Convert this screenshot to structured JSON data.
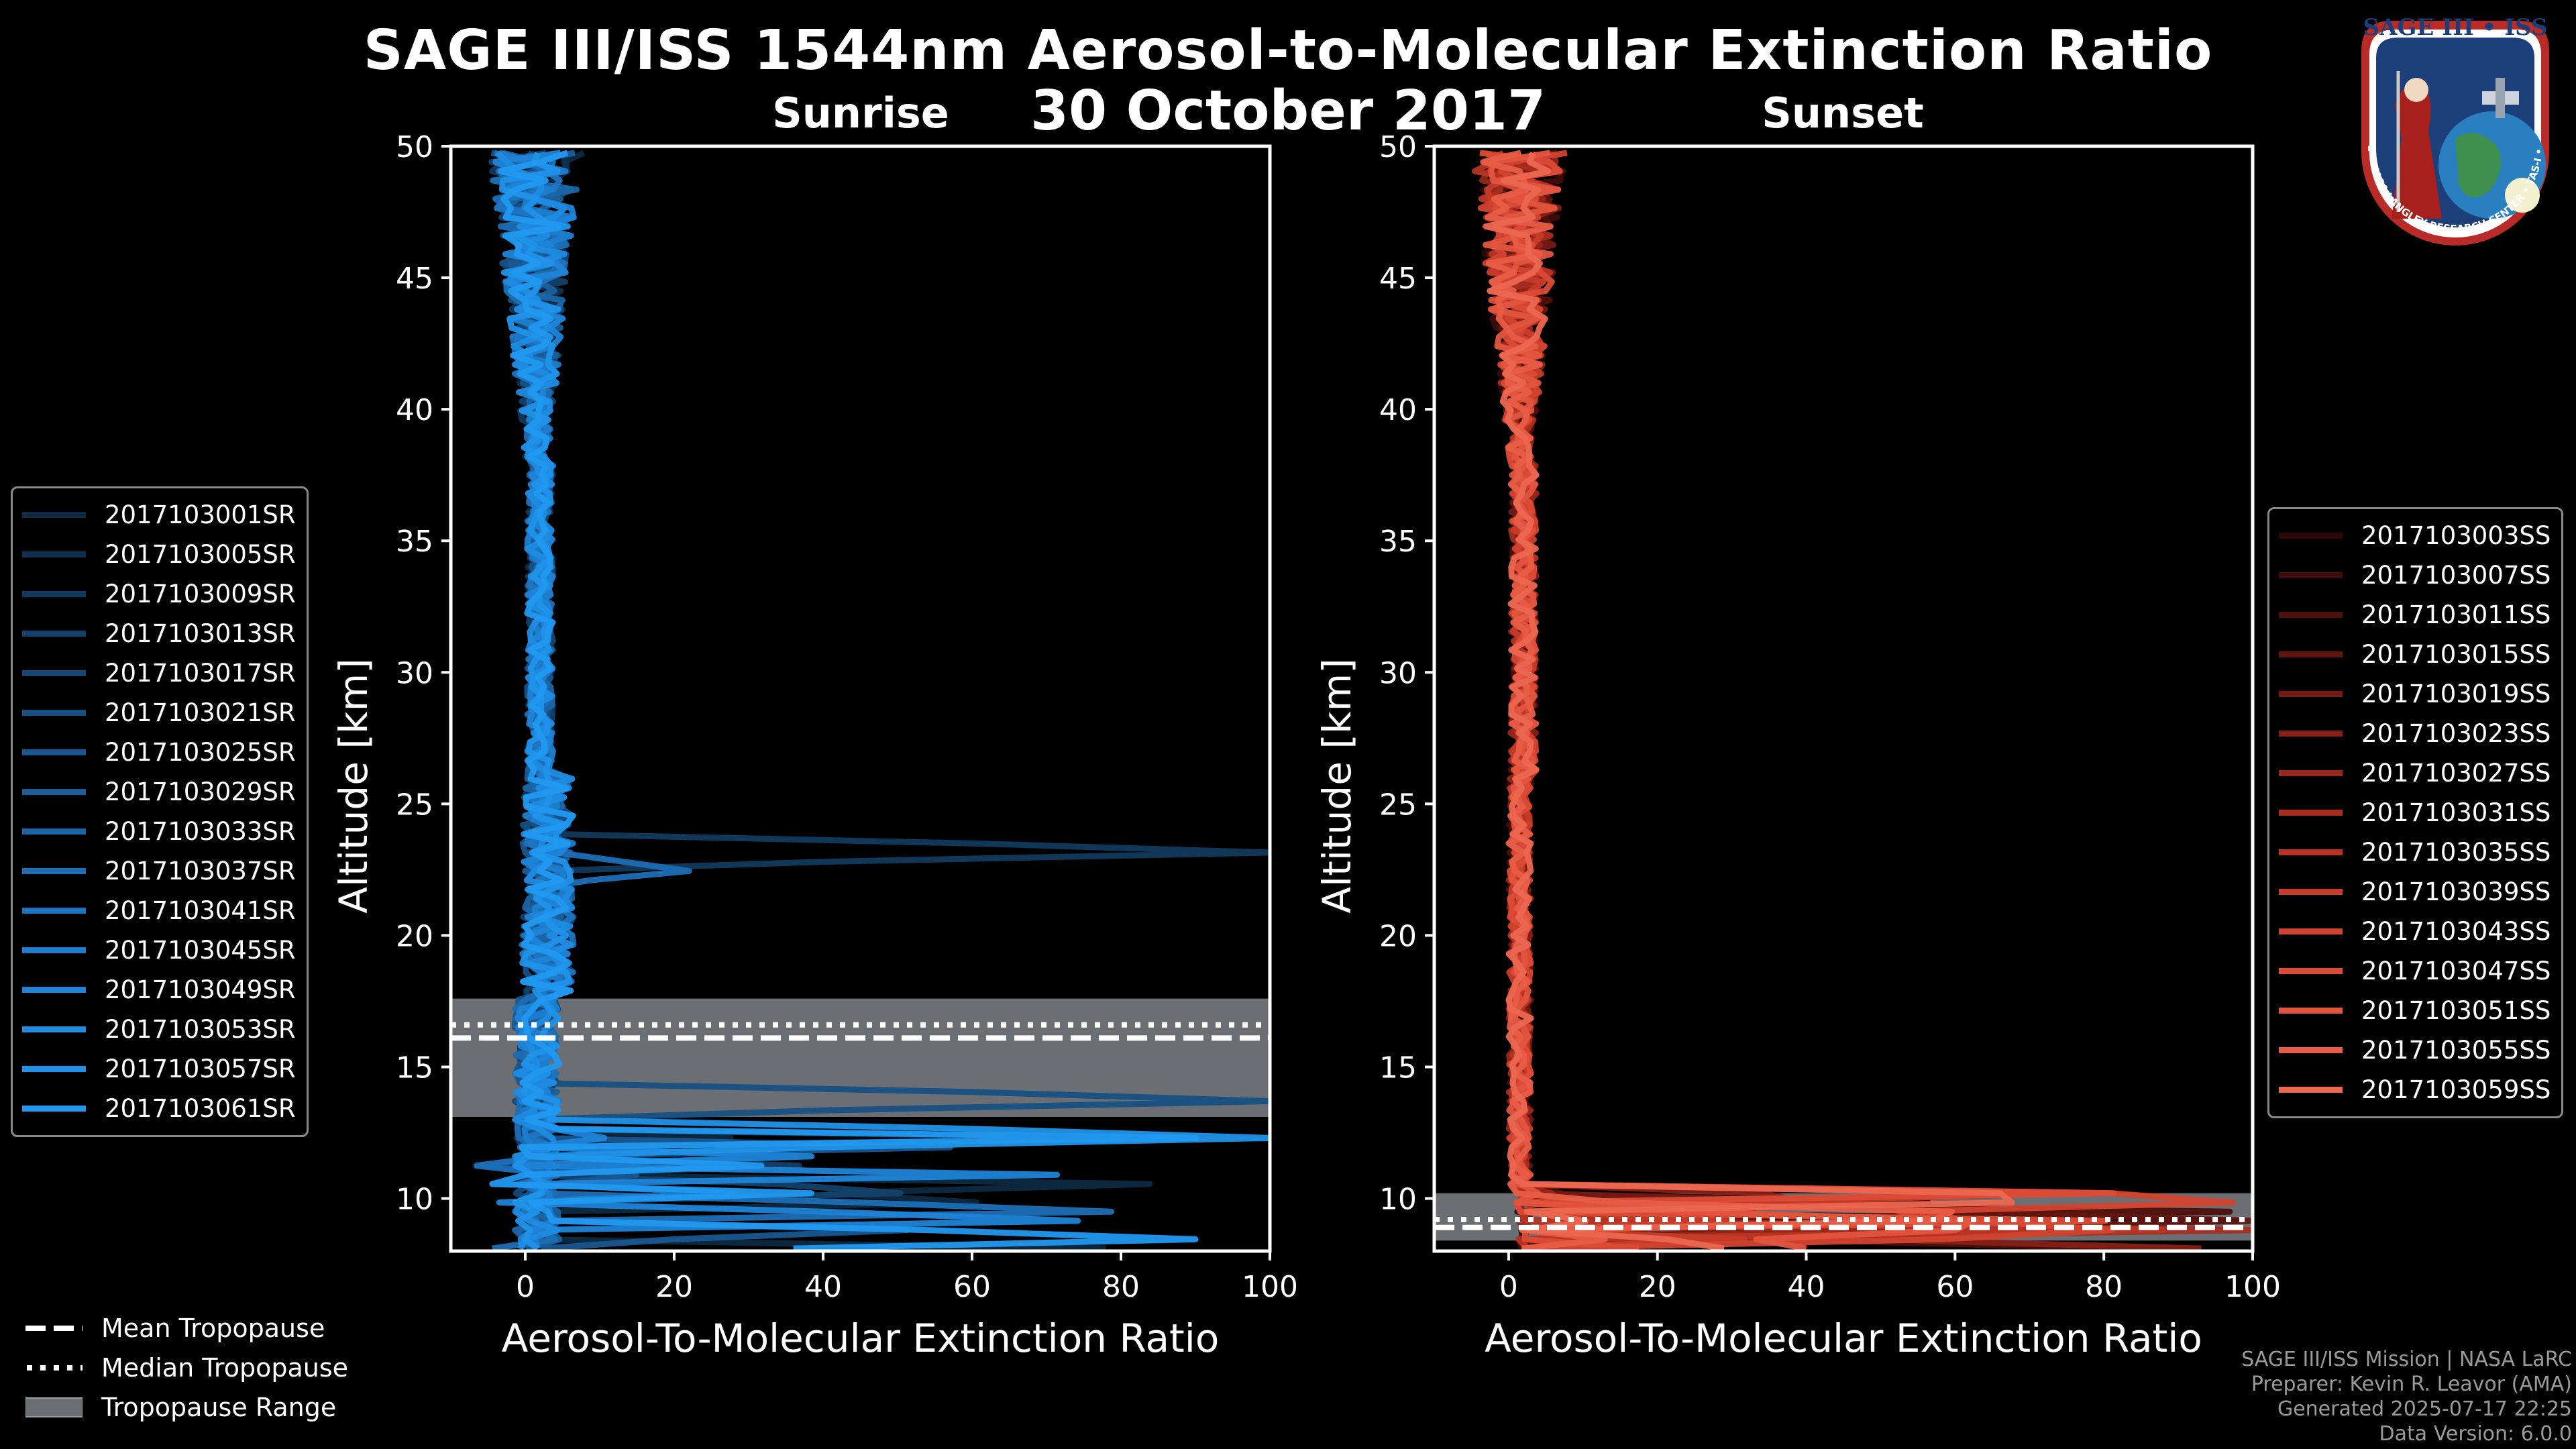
{
  "title": "SAGE III/ISS 1544nm Aerosol-to-Molecular Extinction Ratio",
  "subtitle": "30 October 2017",
  "logo": {
    "text": "SAGE III • ISS",
    "ring_text": "BALL • NASA LANGLEY RESEARCH CENTER • TAS-I • ESA"
  },
  "footer": {
    "line1": "SAGE III/ISS Mission | NASA LaRC",
    "line2": "Preparer: Kevin R. Leavor (AMA)",
    "line3": "Generated 2025-07-17 22:25",
    "line4": "Data Version: 6.0.0"
  },
  "bottom_legend": {
    "mean": "Mean Tropopause",
    "median": "Median Tropopause",
    "range": "Tropopause Range"
  },
  "colors": {
    "sunrise_accent": "#1a8fd6",
    "sunset_accent": "#e8584a",
    "tropo_range": "#6b6e72"
  },
  "chart_data": [
    {
      "type": "line",
      "title": "Sunrise",
      "xlabel": "Aerosol-To-Molecular Extinction Ratio",
      "ylabel": "Altitude [km]",
      "xlim": [
        -10,
        100
      ],
      "ylim": [
        8,
        50
      ],
      "xticks": [
        0,
        20,
        40,
        60,
        80,
        100
      ],
      "yticks": [
        10,
        15,
        20,
        25,
        30,
        35,
        40,
        45,
        50
      ],
      "tropopause": {
        "mean": 16.1,
        "median": 16.6,
        "range": [
          13.1,
          17.6
        ]
      },
      "legend": [
        "2017103001SR",
        "2017103005SR",
        "2017103009SR",
        "2017103013SR",
        "2017103017SR",
        "2017103021SR",
        "2017103025SR",
        "2017103029SR",
        "2017103033SR",
        "2017103037SR",
        "2017103041SR",
        "2017103045SR",
        "2017103049SR",
        "2017103053SR",
        "2017103057SR",
        "2017103061SR"
      ],
      "series_colors": [
        "#0d2a42",
        "#0f3250",
        "#11395d",
        "#13416a",
        "#154876",
        "#175083",
        "#185790",
        "#1a5f9c",
        "#1b66a9",
        "#1c6eb5",
        "#1d75c1",
        "#1e7dcd",
        "#1f84d8",
        "#1f8be1",
        "#2092e9",
        "#2199f0"
      ],
      "notable_features": [
        {
          "series": 2,
          "alt": 23.0,
          "x": 100
        },
        {
          "series": 9,
          "alt": 22.5,
          "x": 22
        },
        {
          "series": 5,
          "alt": 13.8,
          "x": 100
        },
        {
          "series": 14,
          "alt": 12.4,
          "x": 100
        },
        {
          "series": 3,
          "alt": 11.0,
          "x": 80
        },
        {
          "series": 12,
          "alt": 9.7,
          "x": 100
        },
        {
          "series": 15,
          "alt": 8.6,
          "x": 90
        }
      ]
    },
    {
      "type": "line",
      "title": "Sunset",
      "xlabel": "Aerosol-To-Molecular Extinction Ratio",
      "ylabel": "Altitude [km]",
      "xlim": [
        -10,
        100
      ],
      "ylim": [
        8,
        50
      ],
      "xticks": [
        0,
        20,
        40,
        60,
        80,
        100
      ],
      "yticks": [
        10,
        15,
        20,
        25,
        30,
        35,
        40,
        45,
        50
      ],
      "tropopause": {
        "mean": 8.9,
        "median": 9.2,
        "range": [
          8.4,
          10.2
        ]
      },
      "legend": [
        "2017103003SS",
        "2017103007SS",
        "2017103011SS",
        "2017103015SS",
        "2017103019SS",
        "2017103023SS",
        "2017103027SS",
        "2017103031SS",
        "2017103035SS",
        "2017103039SS",
        "2017103043SS",
        "2017103047SS",
        "2017103051SS",
        "2017103055SS",
        "2017103059SS"
      ],
      "series_colors": [
        "#2e0806",
        "#3e0c09",
        "#4f100c",
        "#61150f",
        "#731a13",
        "#852016",
        "#97261a",
        "#a82d1f",
        "#b83424",
        "#c63b29",
        "#d2432f",
        "#db4b36",
        "#e2543e",
        "#e85d46",
        "#ec6750"
      ],
      "notable_features": [
        {
          "series": 3,
          "alt": 9.3,
          "x": 100
        },
        {
          "series": 7,
          "alt": 8.8,
          "x": 100
        },
        {
          "series": 12,
          "alt": 8.5,
          "x": 100
        }
      ]
    }
  ]
}
